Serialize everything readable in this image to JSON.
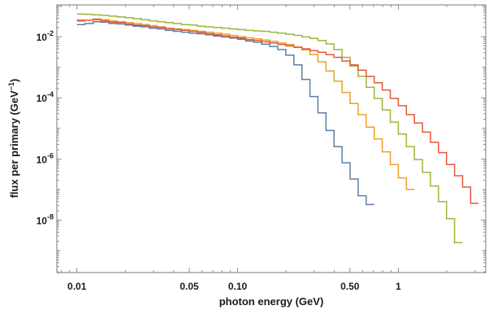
{
  "chart_data": {
    "type": "line",
    "step": true,
    "xlabel": "photon energy (GeV)",
    "ylabel": {
      "text": "flux per primary (GeV",
      "sup": "−1",
      "close": ")"
    },
    "xscale": "log",
    "yscale": "log",
    "xlim": [
      0.0075,
      3.5
    ],
    "ylim": [
      1.9e-10,
      0.11
    ],
    "grid": false,
    "x_ticks": [
      {
        "value": 0.01,
        "label": "0.01"
      },
      {
        "value": 0.05,
        "label": "0.05"
      },
      {
        "value": 0.1,
        "label": "0.10"
      },
      {
        "value": 0.5,
        "label": "0.50"
      },
      {
        "value": 1,
        "label": "1"
      }
    ],
    "y_ticks": [
      {
        "value": 0.01,
        "label": "10",
        "exp": "-2"
      },
      {
        "value": 0.0001,
        "label": "10",
        "exp": "-4"
      },
      {
        "value": 1e-06,
        "label": "10",
        "exp": "-6"
      },
      {
        "value": 1e-08,
        "label": "10",
        "exp": "-8"
      }
    ],
    "series": [
      {
        "color": "#5b7faa",
        "edges": [
          0.01,
          0.0112,
          0.0126,
          0.0141,
          0.0158,
          0.0178,
          0.02,
          0.0224,
          0.0251,
          0.0282,
          0.0316,
          0.0355,
          0.0398,
          0.0447,
          0.0501,
          0.0562,
          0.0631,
          0.0708,
          0.0794,
          0.0891,
          0.1,
          0.1122,
          0.1259,
          0.1413,
          0.1585,
          0.1778,
          0.1995,
          0.2239,
          0.2512,
          0.2818,
          0.3162,
          0.3548,
          0.3981,
          0.4467,
          0.5012,
          0.5623,
          0.631,
          0.7079
        ],
        "values": [
          0.025,
          0.027,
          0.031,
          0.03,
          0.027,
          0.026,
          0.024,
          0.022,
          0.021,
          0.019,
          0.018,
          0.016,
          0.015,
          0.014,
          0.013,
          0.0125,
          0.0115,
          0.0105,
          0.0098,
          0.009,
          0.0082,
          0.0072,
          0.0066,
          0.0057,
          0.0048,
          0.0038,
          0.0025,
          0.0012,
          0.0004,
          0.00011,
          3.2e-05,
          8.5e-06,
          2.5e-06,
          7.5e-07,
          2.2e-07,
          6.2e-08,
          3.2e-08
        ]
      },
      {
        "color": "#eaa228",
        "edges": [
          0.01,
          0.0112,
          0.0126,
          0.0141,
          0.0158,
          0.0178,
          0.02,
          0.0224,
          0.0251,
          0.0282,
          0.0316,
          0.0355,
          0.0398,
          0.0447,
          0.0501,
          0.0562,
          0.0631,
          0.0708,
          0.0794,
          0.0891,
          0.1,
          0.1122,
          0.1259,
          0.1413,
          0.1585,
          0.1778,
          0.1995,
          0.2239,
          0.2512,
          0.2818,
          0.3162,
          0.3548,
          0.3981,
          0.4467,
          0.5012,
          0.5623,
          0.631,
          0.7079,
          0.7943,
          0.8913,
          1.0,
          1.122,
          1.259
        ],
        "values": [
          0.032,
          0.035,
          0.038,
          0.036,
          0.033,
          0.031,
          0.029,
          0.027,
          0.025,
          0.023,
          0.021,
          0.019,
          0.018,
          0.017,
          0.016,
          0.015,
          0.014,
          0.013,
          0.012,
          0.011,
          0.01,
          0.0092,
          0.0085,
          0.0078,
          0.007,
          0.0062,
          0.0055,
          0.0046,
          0.0037,
          0.0026,
          0.0015,
          0.00075,
          0.00035,
          0.00015,
          6.5e-05,
          2.8e-05,
          1.1e-05,
          4.5e-06,
          1.7e-06,
          6.5e-07,
          2.4e-07,
          1e-07
        ]
      },
      {
        "color": "#9ab838",
        "edges": [
          0.01,
          0.0112,
          0.0126,
          0.0141,
          0.0158,
          0.0178,
          0.02,
          0.0224,
          0.0251,
          0.0282,
          0.0316,
          0.0355,
          0.0398,
          0.0447,
          0.0501,
          0.0562,
          0.0631,
          0.0708,
          0.0794,
          0.0891,
          0.1,
          0.1122,
          0.1259,
          0.1413,
          0.1585,
          0.1778,
          0.1995,
          0.2239,
          0.2512,
          0.2818,
          0.3162,
          0.3548,
          0.3981,
          0.4467,
          0.5012,
          0.5623,
          0.631,
          0.7079,
          0.7943,
          0.8913,
          1.0,
          1.122,
          1.259,
          1.413,
          1.585,
          1.778,
          1.995,
          2.239,
          2.512
        ],
        "values": [
          0.055,
          0.054,
          0.052,
          0.05,
          0.047,
          0.044,
          0.042,
          0.039,
          0.036,
          0.033,
          0.031,
          0.029,
          0.027,
          0.025,
          0.024,
          0.022,
          0.021,
          0.02,
          0.019,
          0.018,
          0.017,
          0.016,
          0.0155,
          0.015,
          0.014,
          0.013,
          0.012,
          0.011,
          0.0098,
          0.0088,
          0.0075,
          0.0058,
          0.0038,
          0.0021,
          0.0011,
          0.0005,
          0.00022,
          9.5e-05,
          4e-05,
          1.6e-05,
          6.5e-06,
          2.5e-06,
          9.5e-07,
          3.6e-07,
          1.3e-07,
          4e-08,
          1.1e-08,
          1.8e-09
        ]
      },
      {
        "color": "#e8573a",
        "edges": [
          0.01,
          0.0112,
          0.0126,
          0.0141,
          0.0158,
          0.0178,
          0.02,
          0.0224,
          0.0251,
          0.0282,
          0.0316,
          0.0355,
          0.0398,
          0.0447,
          0.0501,
          0.0562,
          0.0631,
          0.0708,
          0.0794,
          0.0891,
          0.1,
          0.1122,
          0.1259,
          0.1413,
          0.1585,
          0.1778,
          0.1995,
          0.2239,
          0.2512,
          0.2818,
          0.3162,
          0.3548,
          0.3981,
          0.4467,
          0.5012,
          0.5623,
          0.631,
          0.7079,
          0.7943,
          0.8913,
          1.0,
          1.122,
          1.259,
          1.413,
          1.585,
          1.778,
          1.995,
          2.239,
          2.512,
          2.818,
          3.162
        ],
        "values": [
          0.035,
          0.035,
          0.036,
          0.033,
          0.03,
          0.029,
          0.026,
          0.024,
          0.023,
          0.021,
          0.02,
          0.018,
          0.017,
          0.016,
          0.015,
          0.0138,
          0.0125,
          0.0115,
          0.0105,
          0.0097,
          0.009,
          0.008,
          0.0075,
          0.0068,
          0.0062,
          0.0056,
          0.005,
          0.0045,
          0.004,
          0.0035,
          0.0031,
          0.0026,
          0.0021,
          0.0016,
          0.0012,
          0.0008,
          0.0005,
          0.00031,
          0.00018,
          9.5e-05,
          5.5e-05,
          2.8e-05,
          1.5e-05,
          7.5e-06,
          3.5e-06,
          1.6e-06,
          6.5e-07,
          2.8e-07,
          1.2e-07,
          3.5e-08
        ]
      }
    ]
  }
}
